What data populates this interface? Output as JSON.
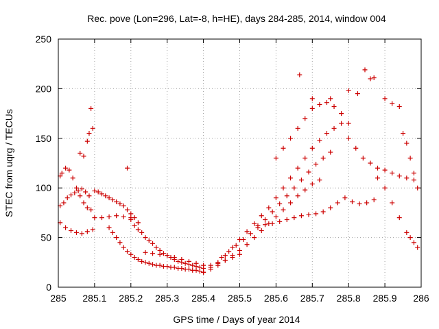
{
  "chart_data": {
    "type": "scatter",
    "title": "Rec. pove (Lon=296, Lat=-8, h=HE), days 284-285, 2014, window 004",
    "xlabel": "GPS time / Days of year 2014",
    "ylabel": "STEC from uqrg / TECUs",
    "xlim": [
      285,
      286
    ],
    "ylim": [
      0,
      250
    ],
    "x_ticks": [
      285,
      285.1,
      285.2,
      285.3,
      285.4,
      285.5,
      285.6,
      285.7,
      285.8,
      285.9,
      286
    ],
    "x_tick_labels": [
      "285",
      "285.1",
      "285.2",
      "285.3",
      "285.4",
      "285.5",
      "285.6",
      "285.7",
      "285.8",
      "285.9",
      "286"
    ],
    "y_ticks": [
      0,
      50,
      100,
      150,
      200,
      250
    ],
    "y_tick_labels": [
      "0",
      "50",
      "100",
      "150",
      "200",
      "250"
    ],
    "grid": true,
    "marker": "+",
    "color": "#cc0000",
    "series": [
      {
        "x": [
          285.005,
          285.01,
          285.02,
          285.03,
          285.04,
          285.05,
          285.06,
          285.07,
          285.08,
          285.09
        ],
        "y": [
          112,
          115,
          120,
          118,
          110,
          100,
          92,
          85,
          80,
          78
        ]
      },
      {
        "x": [
          285.005,
          285.015,
          285.025,
          285.035,
          285.045,
          285.055,
          285.065,
          285.075,
          285.085
        ],
        "y": [
          82,
          85,
          90,
          93,
          95,
          97,
          99,
          96,
          92
        ]
      },
      {
        "x": [
          285.005,
          285.02,
          285.035,
          285.05,
          285.065,
          285.08,
          285.095
        ],
        "y": [
          65,
          60,
          57,
          55,
          54,
          56,
          58
        ]
      },
      {
        "x": [
          285.06,
          285.07,
          285.08,
          285.085,
          285.09,
          285.095
        ],
        "y": [
          135,
          132,
          147,
          155,
          180,
          160
        ]
      },
      {
        "x": [
          285.1,
          285.11,
          285.12,
          285.13,
          285.14,
          285.15,
          285.16,
          285.17,
          285.18,
          285.19,
          285.2,
          285.21,
          285.22
        ],
        "y": [
          97,
          96,
          94,
          92,
          90,
          88,
          86,
          84,
          82,
          78,
          74,
          70,
          65
        ]
      },
      {
        "x": [
          285.1,
          285.12,
          285.14,
          285.16,
          285.18,
          285.2
        ],
        "y": [
          70,
          70,
          71,
          72,
          71,
          70
        ]
      },
      {
        "x": [
          285.14,
          285.15,
          285.16,
          285.17,
          285.18,
          285.19,
          285.2,
          285.21,
          285.22,
          285.23,
          285.24,
          285.25,
          285.26,
          285.27,
          285.28,
          285.29,
          285.3,
          285.31,
          285.32,
          285.33,
          285.34,
          285.35,
          285.36,
          285.37,
          285.38,
          285.39,
          285.4
        ],
        "y": [
          60,
          55,
          50,
          45,
          40,
          36,
          33,
          30,
          28,
          26,
          25,
          24,
          23,
          22,
          22,
          21,
          21,
          20,
          20,
          19,
          19,
          18,
          18,
          17,
          17,
          16,
          15
        ]
      },
      {
        "x": [
          285.19,
          285.2,
          285.21,
          285.22,
          285.23,
          285.24,
          285.25,
          285.26,
          285.27,
          285.28,
          285.29,
          285.3,
          285.31,
          285.32,
          285.33,
          285.34,
          285.35,
          285.36,
          285.37,
          285.38,
          285.39,
          285.4
        ],
        "y": [
          120,
          68,
          62,
          58,
          55,
          50,
          47,
          44,
          40,
          37,
          34,
          32,
          30,
          28,
          26,
          25,
          24,
          23,
          22,
          21,
          20,
          19
        ]
      },
      {
        "x": [
          285.24,
          285.26,
          285.28,
          285.3,
          285.32,
          285.34,
          285.36,
          285.38,
          285.4,
          285.42,
          285.44,
          285.46,
          285.48,
          285.5
        ],
        "y": [
          35,
          34,
          33,
          32,
          30,
          28,
          26,
          24,
          22,
          22,
          24,
          27,
          30,
          33
        ]
      },
      {
        "x": [
          285.4,
          285.42,
          285.44,
          285.46,
          285.48,
          285.5,
          285.52,
          285.54,
          285.56,
          285.58,
          285.6,
          285.62,
          285.64,
          285.66,
          285.68,
          285.7,
          285.72
        ],
        "y": [
          15,
          18,
          22,
          27,
          32,
          37,
          43,
          50,
          57,
          64,
          71,
          78,
          85,
          92,
          98,
          104,
          108
        ]
      },
      {
        "x": [
          285.42,
          285.44,
          285.46,
          285.48,
          285.5,
          285.52,
          285.54,
          285.56,
          285.58,
          285.6,
          285.62,
          285.64,
          285.66,
          285.68,
          285.7,
          285.72,
          285.74,
          285.76,
          285.78
        ],
        "y": [
          20,
          25,
          32,
          40,
          48,
          56,
          64,
          72,
          80,
          90,
          100,
          110,
          120,
          130,
          140,
          148,
          155,
          160,
          165
        ]
      },
      {
        "x": [
          285.45,
          285.47,
          285.49,
          285.51,
          285.53,
          285.55,
          285.57,
          285.59,
          285.61,
          285.63,
          285.65,
          285.67,
          285.69,
          285.71,
          285.73,
          285.75
        ],
        "y": [
          30,
          36,
          42,
          48,
          54,
          60,
          68,
          76,
          84,
          92,
          100,
          108,
          116,
          124,
          130,
          136
        ]
      },
      {
        "x": [
          285.55,
          285.57,
          285.59,
          285.61,
          285.63,
          285.65,
          285.67,
          285.69,
          285.71,
          285.73,
          285.75,
          285.77,
          285.79,
          285.81,
          285.83,
          285.85,
          285.87
        ],
        "y": [
          62,
          63,
          64,
          66,
          68,
          70,
          72,
          73,
          74,
          76,
          80,
          85,
          90,
          86,
          84,
          85,
          88
        ]
      },
      {
        "x": [
          285.6,
          285.62,
          285.64,
          285.66,
          285.68,
          285.7,
          285.72,
          285.74,
          285.76,
          285.78,
          285.8
        ],
        "y": [
          130,
          140,
          150,
          160,
          170,
          180,
          184,
          186,
          182,
          175,
          165
        ]
      },
      {
        "x": [
          285.665,
          285.7,
          285.75,
          285.8,
          285.825,
          285.845,
          285.86,
          285.87,
          285.9,
          285.92,
          285.94
        ],
        "y": [
          214,
          190,
          190,
          198,
          195,
          219,
          210,
          211,
          190,
          185,
          182
        ]
      },
      {
        "x": [
          285.8,
          285.82,
          285.84,
          285.86,
          285.88,
          285.9,
          285.92,
          285.94,
          285.96,
          285.98
        ],
        "y": [
          150,
          140,
          130,
          125,
          120,
          118,
          115,
          112,
          110,
          108
        ]
      },
      {
        "x": [
          285.88,
          285.9,
          285.92,
          285.94,
          285.96,
          285.97,
          285.98,
          285.99
        ],
        "y": [
          110,
          100,
          85,
          70,
          55,
          50,
          45,
          40
        ]
      },
      {
        "x": [
          285.95,
          285.96,
          285.97,
          285.98,
          285.99
        ],
        "y": [
          155,
          145,
          130,
          115,
          100
        ]
      }
    ]
  }
}
